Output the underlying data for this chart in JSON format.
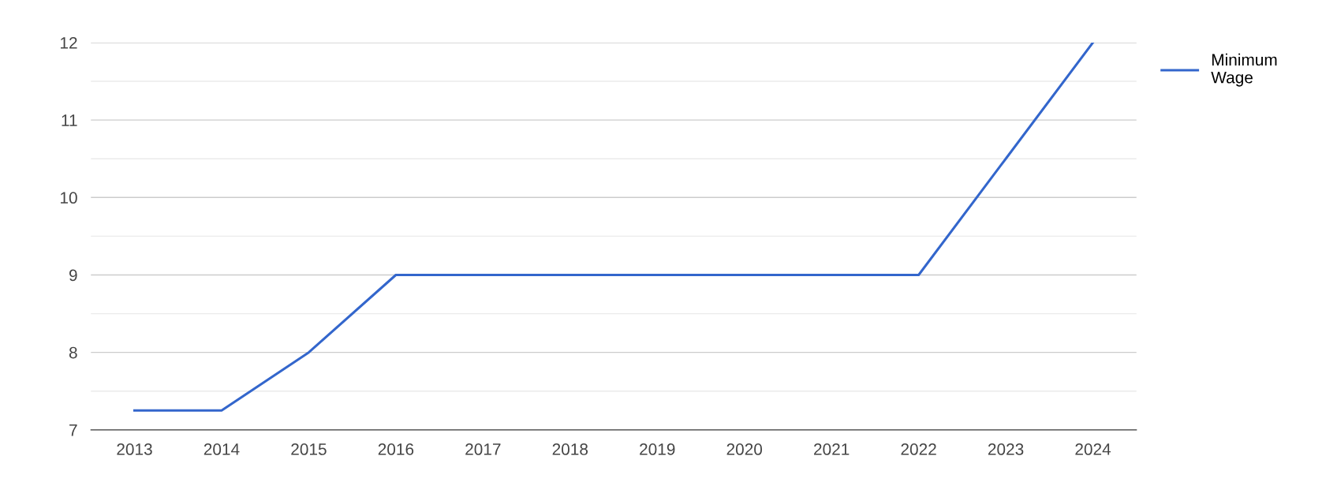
{
  "chart_data": {
    "type": "line",
    "categories": [
      "2013",
      "2014",
      "2015",
      "2016",
      "2017",
      "2018",
      "2019",
      "2020",
      "2021",
      "2022",
      "2023",
      "2024"
    ],
    "series": [
      {
        "name": "Minimum\nWage",
        "color": "#3366cc",
        "values": [
          7.25,
          7.25,
          8,
          9,
          9,
          9,
          9,
          9,
          9,
          9,
          10.5,
          12
        ]
      }
    ],
    "ylim": [
      7,
      12
    ],
    "yticks": [
      7,
      {
        "value": 7.5,
        "label": null
      },
      8,
      {
        "value": 8.5,
        "label": null
      },
      9,
      {
        "value": 9.5,
        "label": null
      },
      10,
      {
        "value": 10.5,
        "label": null
      },
      11,
      {
        "value": 11.5,
        "label": null
      },
      12
    ],
    "grid": "y",
    "legend": "top right",
    "marker": "none",
    "line_style": "solid"
  }
}
